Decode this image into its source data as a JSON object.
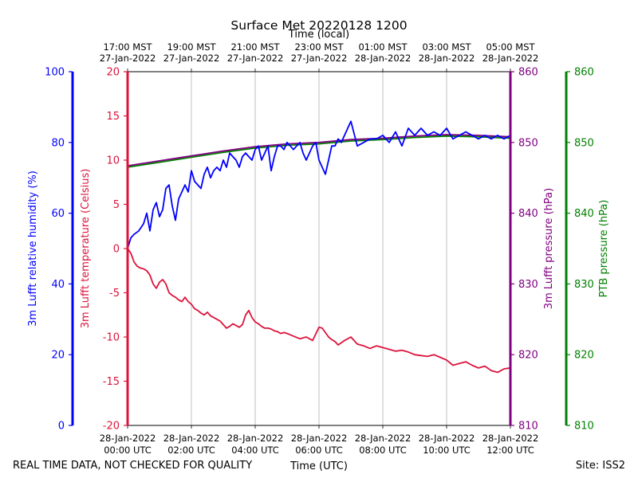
{
  "chart_data": {
    "type": "line",
    "title": "Surface Met 20220128 1200",
    "top_axis_label": "Time (local)",
    "xlabel": "Time (UTC)",
    "footer_left": "REAL TIME DATA, NOT CHECKED FOR QUALITY",
    "footer_right": "Site: ISS2",
    "x_hours_utc": [
      0,
      2,
      4,
      6,
      8,
      10,
      12
    ],
    "xlim": [
      0,
      12
    ],
    "bottom_ticks": [
      {
        "date": "28-Jan-2022",
        "time": "00:00 UTC"
      },
      {
        "date": "28-Jan-2022",
        "time": "02:00 UTC"
      },
      {
        "date": "28-Jan-2022",
        "time": "04:00 UTC"
      },
      {
        "date": "28-Jan-2022",
        "time": "06:00 UTC"
      },
      {
        "date": "28-Jan-2022",
        "time": "08:00 UTC"
      },
      {
        "date": "28-Jan-2022",
        "time": "10:00 UTC"
      },
      {
        "date": "28-Jan-2022",
        "time": "12:00 UTC"
      }
    ],
    "top_ticks": [
      {
        "time": "17:00 MST",
        "date": "27-Jan-2022"
      },
      {
        "time": "19:00 MST",
        "date": "27-Jan-2022"
      },
      {
        "time": "21:00 MST",
        "date": "27-Jan-2022"
      },
      {
        "time": "23:00 MST",
        "date": "27-Jan-2022"
      },
      {
        "time": "01:00 MST",
        "date": "28-Jan-2022"
      },
      {
        "time": "03:00 MST",
        "date": "28-Jan-2022"
      },
      {
        "time": "05:00 MST",
        "date": "28-Jan-2022"
      }
    ],
    "axes": {
      "humidity": {
        "label": "3m Lufft relative humidity (%)",
        "color": "#0000ff",
        "ylim": [
          0,
          100
        ],
        "ticks": [
          0,
          20,
          40,
          60,
          80,
          100
        ]
      },
      "temperature": {
        "label": "3m Lufft temperature (Celsius)",
        "color": "#dc143c",
        "ylim": [
          -20,
          20
        ],
        "ticks": [
          -20,
          -15,
          -10,
          -5,
          0,
          5,
          10,
          15,
          20
        ]
      },
      "lufft_pressure": {
        "label": "3m Lufft pressure (hPa)",
        "color": "#800080",
        "ylim": [
          810,
          860
        ],
        "ticks": [
          810,
          820,
          830,
          840,
          850,
          860
        ]
      },
      "ptb_pressure": {
        "label": "PTB pressure (hPa)",
        "color": "#008000",
        "ylim": [
          810,
          860
        ],
        "ticks": [
          810,
          820,
          830,
          840,
          850,
          860
        ]
      }
    },
    "series": [
      {
        "name": "3m Lufft relative humidity",
        "axis": "humidity",
        "color": "#0000ff",
        "x": [
          0,
          0.1,
          0.2,
          0.35,
          0.5,
          0.6,
          0.7,
          0.8,
          0.9,
          1.0,
          1.1,
          1.2,
          1.3,
          1.4,
          1.5,
          1.6,
          1.7,
          1.8,
          1.9,
          2.0,
          2.1,
          2.2,
          2.3,
          2.4,
          2.5,
          2.6,
          2.7,
          2.8,
          2.9,
          3.0,
          3.1,
          3.2,
          3.3,
          3.4,
          3.5,
          3.6,
          3.7,
          3.8,
          3.9,
          4.0,
          4.1,
          4.2,
          4.3,
          4.4,
          4.5,
          4.6,
          4.7,
          4.8,
          4.9,
          5.0,
          5.1,
          5.2,
          5.3,
          5.4,
          5.5,
          5.6,
          5.7,
          5.8,
          5.9,
          6.0,
          6.1,
          6.2,
          6.3,
          6.4,
          6.5,
          6.6,
          6.7,
          6.8,
          6.9,
          7.0,
          7.2,
          7.4,
          7.6,
          7.8,
          8.0,
          8.2,
          8.4,
          8.6,
          8.8,
          9.0,
          9.2,
          9.4,
          9.6,
          9.8,
          10.0,
          10.2,
          10.4,
          10.6,
          10.8,
          11.0,
          11.2,
          11.4,
          11.6,
          11.8,
          12.0
        ],
        "values": [
          50,
          53,
          54,
          55,
          57,
          60,
          55,
          61,
          63,
          59,
          61,
          67,
          68,
          62,
          58,
          64,
          66,
          68,
          66,
          72,
          69,
          68,
          67,
          71,
          73,
          70,
          72,
          73,
          72,
          75,
          73,
          77,
          76,
          75,
          73,
          76,
          77,
          76,
          75,
          78,
          79,
          75,
          77,
          79,
          72,
          76,
          79,
          79,
          78,
          80,
          79,
          78,
          79,
          80,
          77,
          75,
          77,
          79,
          80,
          75,
          73,
          71,
          75,
          79,
          79,
          81,
          80,
          82,
          84,
          86,
          79,
          80,
          81,
          81,
          82,
          80,
          83,
          79,
          84,
          82,
          84,
          82,
          83,
          82,
          84,
          81,
          82,
          83,
          82,
          81,
          82,
          81,
          82,
          81,
          82
        ]
      },
      {
        "name": "3m Lufft temperature",
        "axis": "temperature",
        "color": "#dc143c",
        "x": [
          0,
          0.1,
          0.2,
          0.3,
          0.4,
          0.5,
          0.6,
          0.7,
          0.8,
          0.9,
          1.0,
          1.1,
          1.2,
          1.3,
          1.4,
          1.5,
          1.6,
          1.7,
          1.8,
          1.9,
          2.0,
          2.1,
          2.2,
          2.3,
          2.4,
          2.5,
          2.6,
          2.7,
          2.8,
          2.9,
          3.0,
          3.1,
          3.2,
          3.3,
          3.4,
          3.5,
          3.6,
          3.7,
          3.8,
          3.9,
          4.0,
          4.1,
          4.2,
          4.3,
          4.4,
          4.5,
          4.6,
          4.7,
          4.8,
          4.9,
          5.0,
          5.2,
          5.4,
          5.6,
          5.8,
          6.0,
          6.1,
          6.2,
          6.3,
          6.4,
          6.5,
          6.6,
          6.8,
          7.0,
          7.2,
          7.4,
          7.6,
          7.8,
          8.0,
          8.2,
          8.4,
          8.6,
          8.8,
          9.0,
          9.2,
          9.4,
          9.6,
          9.8,
          10.0,
          10.2,
          10.4,
          10.6,
          10.8,
          11.0,
          11.2,
          11.4,
          11.6,
          11.8,
          12.0
        ],
        "values": [
          0,
          -0.5,
          -1.5,
          -2.0,
          -2.2,
          -2.3,
          -2.5,
          -3.0,
          -4.0,
          -4.5,
          -3.8,
          -3.5,
          -4.0,
          -5.0,
          -5.3,
          -5.5,
          -5.8,
          -6.0,
          -5.5,
          -6.0,
          -6.3,
          -6.8,
          -7.0,
          -7.3,
          -7.5,
          -7.2,
          -7.6,
          -7.8,
          -8.0,
          -8.2,
          -8.6,
          -9.0,
          -8.8,
          -8.5,
          -8.7,
          -8.9,
          -8.6,
          -7.5,
          -7.0,
          -7.8,
          -8.3,
          -8.5,
          -8.8,
          -9.0,
          -9.0,
          -9.1,
          -9.3,
          -9.4,
          -9.6,
          -9.5,
          -9.6,
          -9.9,
          -10.2,
          -10.0,
          -10.4,
          -8.9,
          -9.0,
          -9.5,
          -10.0,
          -10.3,
          -10.5,
          -10.9,
          -10.4,
          -10.0,
          -10.8,
          -11.0,
          -11.3,
          -11.0,
          -11.2,
          -11.4,
          -11.6,
          -11.5,
          -11.7,
          -12.0,
          -12.1,
          -12.2,
          -12.0,
          -12.3,
          -12.6,
          -13.2,
          -13.0,
          -12.8,
          -13.2,
          -13.5,
          -13.3,
          -13.8,
          -14.0,
          -13.6,
          -13.5
        ]
      },
      {
        "name": "3m Lufft pressure",
        "axis": "lufft_pressure",
        "color": "#800080",
        "x": [
          0,
          1,
          2,
          3,
          4,
          5,
          6,
          7,
          8,
          9,
          10,
          11,
          12
        ],
        "values": [
          846.7,
          847.4,
          848.1,
          848.8,
          849.4,
          849.8,
          850.0,
          850.4,
          850.6,
          850.9,
          851.1,
          851.0,
          850.8
        ]
      },
      {
        "name": "PTB pressure",
        "axis": "ptb_pressure",
        "color": "#008000",
        "x": [
          0,
          1,
          2,
          3,
          4,
          5,
          6,
          7,
          8,
          9,
          10,
          11,
          12
        ],
        "values": [
          846.5,
          847.2,
          847.9,
          848.6,
          849.2,
          849.6,
          849.8,
          850.2,
          850.4,
          850.7,
          850.9,
          850.8,
          850.6
        ]
      }
    ]
  }
}
